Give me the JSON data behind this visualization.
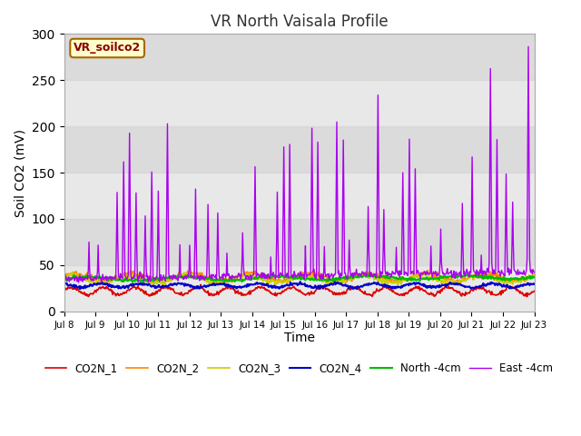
{
  "title": "VR North Vaisala Profile",
  "xlabel": "Time",
  "ylabel": "Soil CO2 (mV)",
  "ylim": [
    0,
    300
  ],
  "yticks": [
    0,
    50,
    100,
    150,
    200,
    250,
    300
  ],
  "background_color": "#e8e8e8",
  "figure_color": "#ffffff",
  "annotation_label": "VR_soilco2",
  "series_names": [
    "CO2N_1",
    "CO2N_2",
    "CO2N_3",
    "CO2N_4",
    "North -4cm",
    "East -4cm"
  ],
  "series_colors": [
    "#dd0000",
    "#ff8800",
    "#cccc00",
    "#0000cc",
    "#00bb00",
    "#aa00ee"
  ],
  "series_lws": [
    1.2,
    1.2,
    1.2,
    1.5,
    1.5,
    1.0
  ],
  "n_points": 720,
  "x_start": 8,
  "x_end": 23,
  "xtick_positions": [
    8,
    9,
    10,
    11,
    12,
    13,
    14,
    15,
    16,
    17,
    18,
    19,
    20,
    21,
    22,
    23
  ],
  "xtick_labels": [
    "Jul 8",
    "Jul 9",
    "Jul 10",
    "Jul 11",
    "Jul 12",
    "Jul 13",
    "Jul 14",
    "Jul 15",
    "Jul 16",
    "Jul 17",
    "Jul 18",
    "Jul 19",
    "Jul 20",
    "Jul 21",
    "Jul 22",
    "Jul 23"
  ]
}
